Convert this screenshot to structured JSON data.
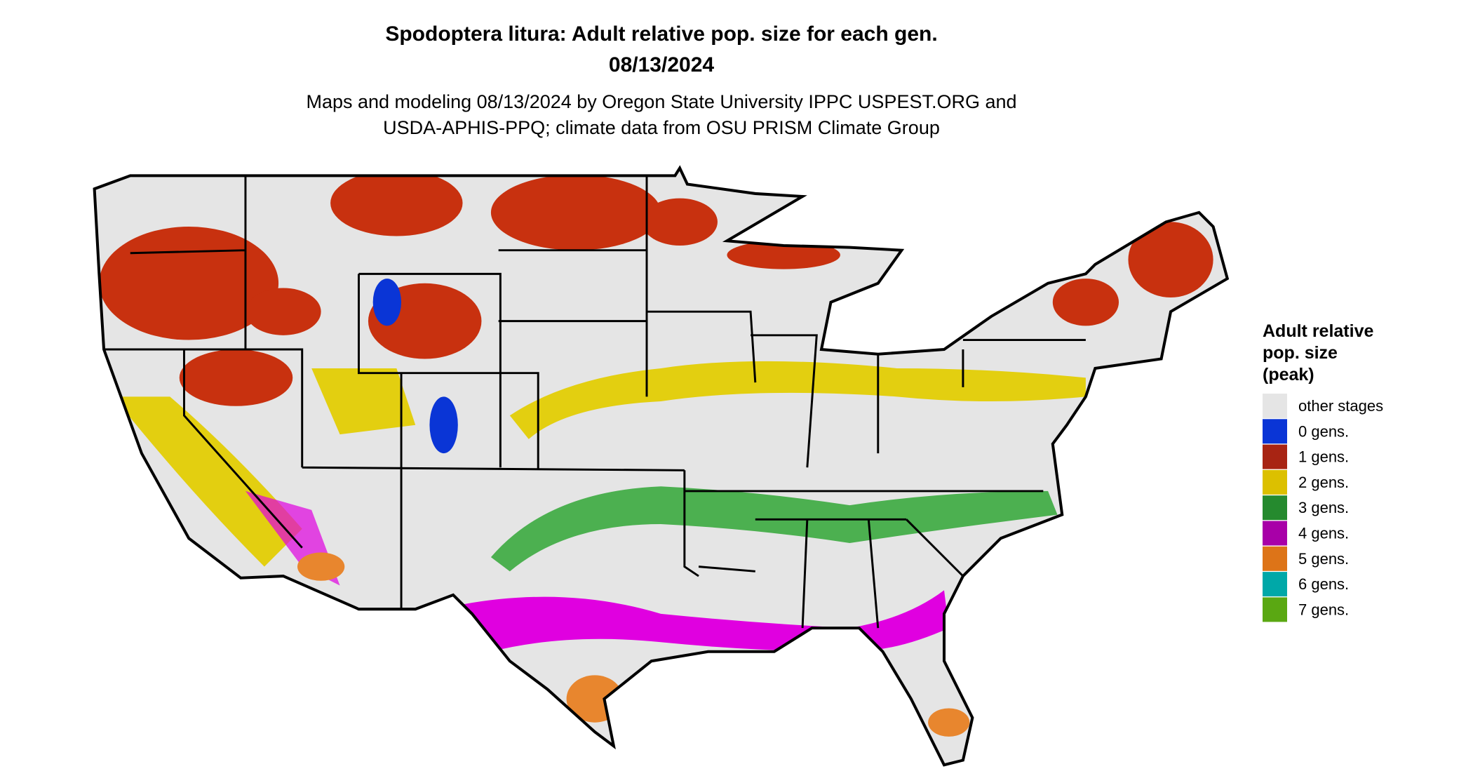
{
  "header": {
    "title": "Spodoptera litura: Adult relative pop. size for each gen.",
    "date": "08/13/2024",
    "subtitle": [
      "Maps and modeling 08/13/2024 by Oregon State University IPPC USPEST.ORG and",
      "USDA-APHIS-PPQ; climate data from OSU PRISM Climate Group"
    ]
  },
  "legend": {
    "title": [
      "Adult relative",
      "pop. size",
      "(peak)"
    ],
    "items": [
      {
        "label": "other stages",
        "color": "#e5e5e5"
      },
      {
        "label": "0 gens.",
        "color": "#0a35d6"
      },
      {
        "label": "1 gens.",
        "color": "#a82413"
      },
      {
        "label": "2 gens.",
        "color": "#dcc000"
      },
      {
        "label": "3 gens.",
        "color": "#258a2e"
      },
      {
        "label": "4 gens.",
        "color": "#a800a8"
      },
      {
        "label": "5 gens.",
        "color": "#dd7418"
      },
      {
        "label": "6 gens.",
        "color": "#00a8a8"
      },
      {
        "label": "7 gens.",
        "color": "#5aa812"
      }
    ]
  }
}
